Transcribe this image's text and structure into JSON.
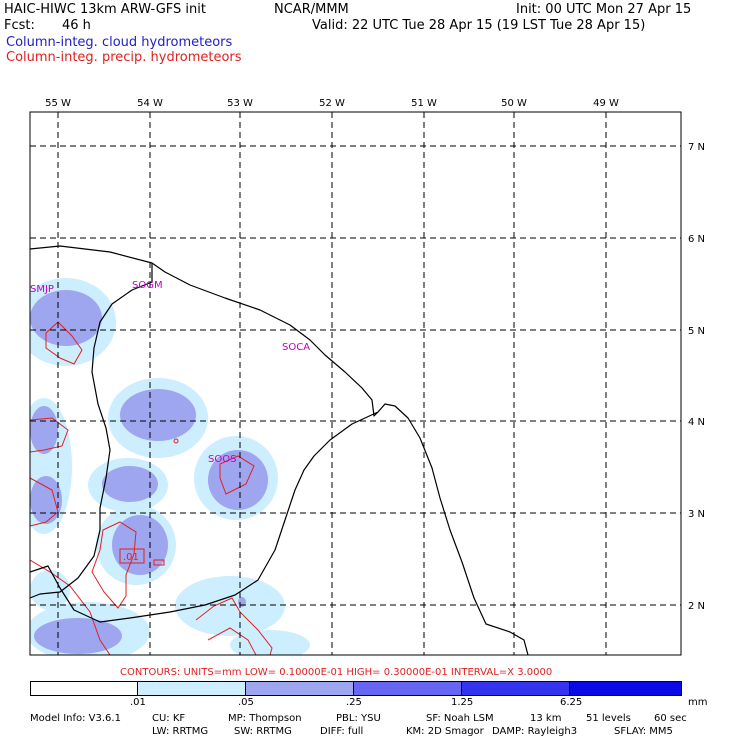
{
  "header": {
    "model": "HAIC-HIWC 13km ARW-GFS init",
    "center": "NCAR/MMM",
    "fcst_label": "Fcst:",
    "fcst_value": "46 h",
    "init": "Init: 00 UTC Mon 27 Apr 15",
    "valid": "Valid: 22 UTC Tue 28 Apr 15 (19 LST Tue 28 Apr 15)",
    "field1": "Column-integ. cloud hydrometeors",
    "field2": "Column-integ. precip. hydrometeors"
  },
  "colors": {
    "field1": "#2020c8",
    "field2": "#e02020",
    "station": "#c000c0",
    "fill_light": "#cceeff",
    "fill_mid": "#9fa6f0",
    "fill_dark": "#6060f0",
    "fill_darker": "#1010e8"
  },
  "map": {
    "lon_labels": [
      "55 W",
      "54 W",
      "53 W",
      "52 W",
      "51 W",
      "50 W",
      "49 W"
    ],
    "lat_labels": [
      "7 N",
      "6 N",
      "5 N",
      "4 N",
      "3 N",
      "2 N"
    ],
    "stations": [
      "SMJP",
      "SOGM",
      "SOCA",
      "SOOS"
    ],
    "contour_label": ".01"
  },
  "contours_text": "CONTOURS:  UNITS=mm  LOW= 0.10000E-01  HIGH= 0.30000E-01  INTERVAL=X  3.0000",
  "colorbar": {
    "labels": [
      ".01",
      ".05",
      ".25",
      "1.25",
      "6.25"
    ],
    "units": "mm"
  },
  "footer": {
    "line1": [
      "Model Info: V3.6.1",
      "CU: KF",
      "MP: Thompson",
      "PBL: YSU",
      "SF: Noah LSM",
      "13 km",
      "51 levels",
      "60 sec"
    ],
    "line2": [
      "LW: RRTMG",
      "SW: RRTMG",
      "DIFF: full",
      "KM: 2D Smagor",
      "DAMP: Rayleigh3",
      "SFLAY: MM5"
    ]
  }
}
